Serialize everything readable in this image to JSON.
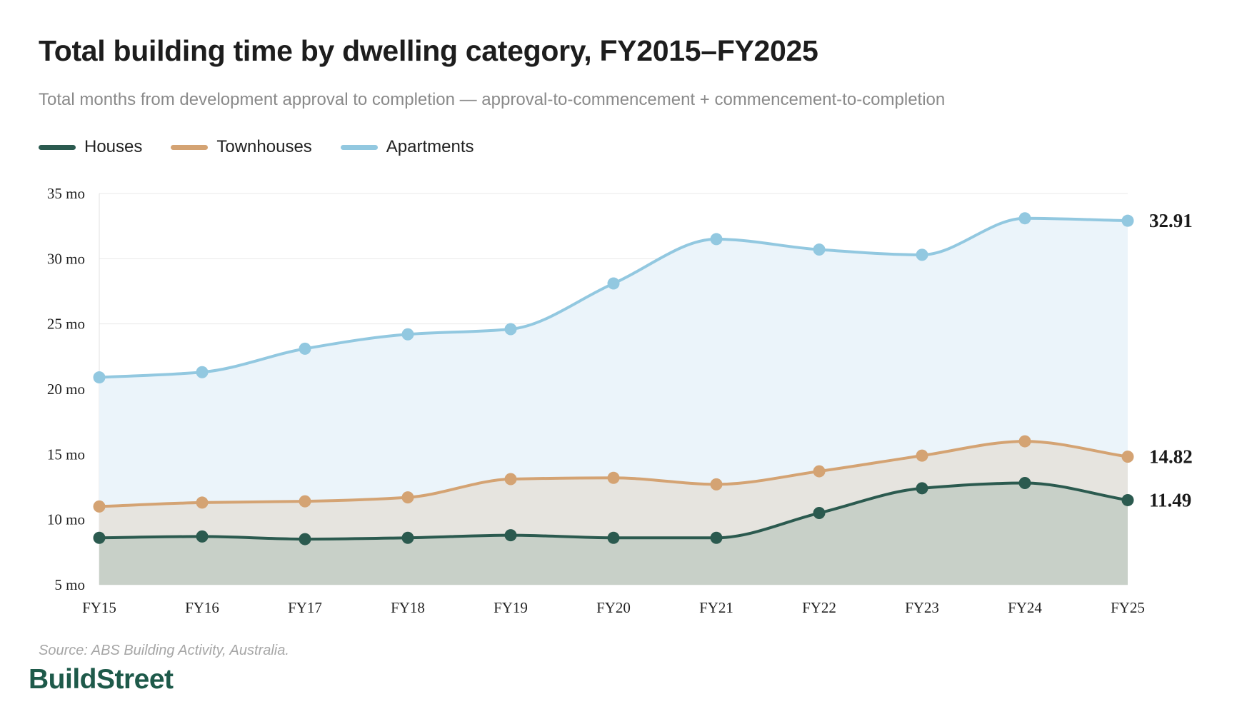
{
  "title": "Total building time by dwelling category, FY2015–FY2025",
  "subtitle": "Total months from development approval to completion — approval-to-commencement + commencement-to-completion",
  "source": "Source: ABS Building Activity, Australia.",
  "brand": "BuildStreet",
  "chart_data": {
    "type": "area",
    "title": "Total building time by dwelling category, FY2015–FY2025",
    "subtitle": "Total months from development approval to completion — approval-to-commencement + commencement-to-completion",
    "categories": [
      "FY15",
      "FY16",
      "FY17",
      "FY18",
      "FY19",
      "FY20",
      "FY21",
      "FY22",
      "FY23",
      "FY24",
      "FY25"
    ],
    "ylim": [
      5,
      35
    ],
    "yticks": [
      5,
      10,
      15,
      20,
      25,
      30,
      35
    ],
    "ytick_suffix": " mo",
    "grid": true,
    "legend_position": "top-left",
    "series": [
      {
        "name": "Houses",
        "color": "#2b5a4f",
        "fill": "#c8d0c8",
        "values": [
          8.6,
          8.7,
          8.5,
          8.6,
          8.8,
          8.6,
          8.6,
          10.5,
          12.4,
          12.8,
          11.49
        ],
        "end_label": "11.49"
      },
      {
        "name": "Townhouses",
        "color": "#d4a373",
        "fill": "#e6e4df",
        "values": [
          11.0,
          11.3,
          11.4,
          11.7,
          13.1,
          13.2,
          12.7,
          13.7,
          14.9,
          16.0,
          14.82
        ],
        "end_label": "14.82"
      },
      {
        "name": "Apartments",
        "color": "#92c8e0",
        "fill": "#ebf4fa",
        "values": [
          20.9,
          21.3,
          23.1,
          24.2,
          24.6,
          28.1,
          31.5,
          30.7,
          30.3,
          33.1,
          32.91
        ],
        "end_label": "32.91"
      }
    ]
  }
}
